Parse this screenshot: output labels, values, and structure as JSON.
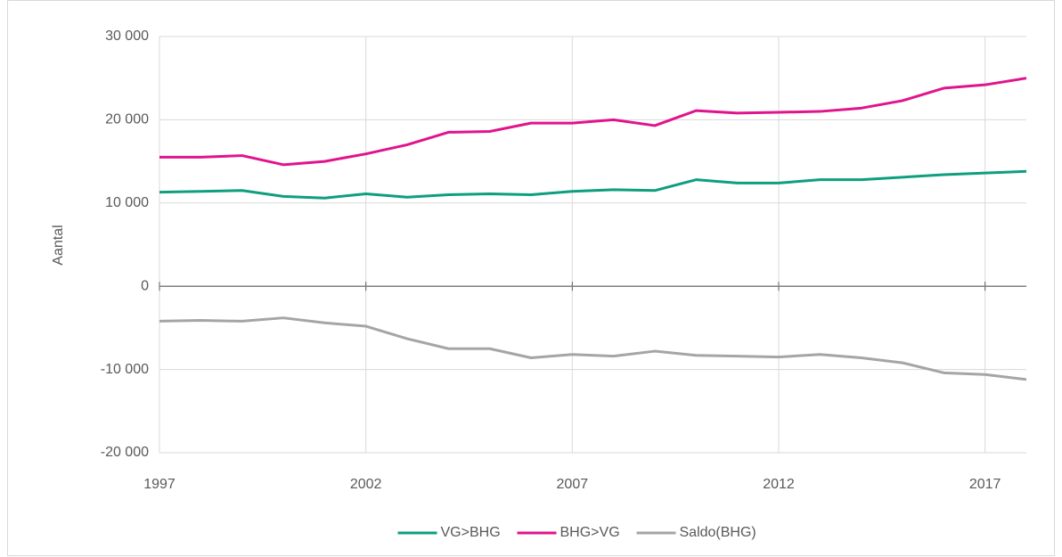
{
  "chart_data": {
    "type": "line",
    "y_label": "Aantal",
    "x": [
      1997,
      1998,
      1999,
      2000,
      2001,
      2002,
      2003,
      2004,
      2005,
      2006,
      2007,
      2008,
      2009,
      2010,
      2011,
      2012,
      2013,
      2014,
      2015,
      2016,
      2017,
      2018
    ],
    "series": [
      {
        "name": "VG>BHG",
        "color": "#0e9e80",
        "values": [
          11300,
          11400,
          11500,
          10800,
          10600,
          11100,
          10700,
          11000,
          11100,
          11000,
          11400,
          11600,
          11500,
          12800,
          12400,
          12400,
          12800,
          12800,
          13100,
          13400,
          13600,
          13800
        ]
      },
      {
        "name": "BHG>VG",
        "color": "#e0148c",
        "values": [
          15500,
          15500,
          15700,
          14600,
          15000,
          15900,
          17000,
          18500,
          18600,
          19600,
          19600,
          20000,
          19300,
          21100,
          20800,
          20900,
          21000,
          21400,
          22300,
          23800,
          24200,
          25000
        ]
      },
      {
        "name": "Saldo(BHG)",
        "color": "#a5a5a5",
        "values": [
          -4200,
          -4100,
          -4200,
          -3800,
          -4400,
          -4800,
          -6300,
          -7500,
          -7500,
          -8600,
          -8200,
          -8400,
          -7800,
          -8300,
          -8400,
          -8500,
          -8200,
          -8600,
          -9200,
          -10400,
          -10600,
          -11200
        ]
      }
    ],
    "xlim": [
      1997,
      2018
    ],
    "xticks": [
      1997,
      2002,
      2007,
      2012,
      2017
    ],
    "ylim": [
      -20000,
      30000
    ],
    "yticks": [
      {
        "value": -20000,
        "label": "-20 000"
      },
      {
        "value": -10000,
        "label": "-10 000"
      },
      0,
      {
        "value": 10000,
        "label": "10 000"
      },
      {
        "value": 20000,
        "label": "20 000"
      },
      {
        "value": 30000,
        "label": "30 000"
      }
    ],
    "grid": true,
    "legend": "bottom"
  }
}
